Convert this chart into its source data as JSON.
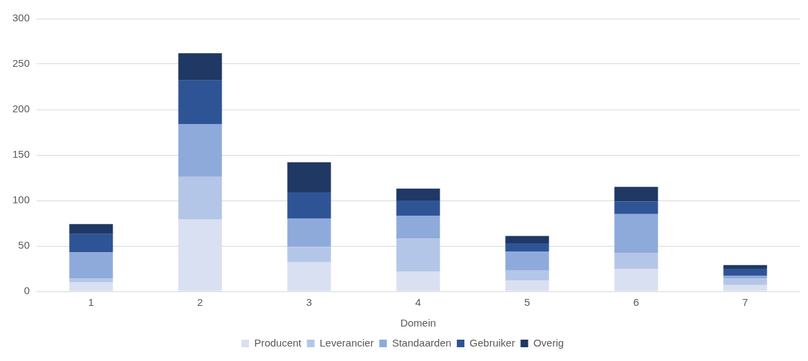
{
  "chart_data": {
    "type": "bar",
    "stacked": true,
    "xlabel": "Domein",
    "categories": [
      "1",
      "2",
      "3",
      "4",
      "5",
      "6",
      "7"
    ],
    "series": [
      {
        "name": "Producent",
        "color": "#d9e0f1",
        "values": [
          10,
          79,
          32,
          22,
          12,
          25,
          7
        ]
      },
      {
        "name": "Leverancier",
        "color": "#b4c6e7",
        "values": [
          4,
          47,
          17,
          36,
          11,
          17,
          7
        ]
      },
      {
        "name": "Standaarden",
        "color": "#8eaadb",
        "values": [
          29,
          58,
          31,
          25,
          21,
          43,
          3
        ]
      },
      {
        "name": "Gebruiker",
        "color": "#2f5496",
        "values": [
          20,
          48,
          29,
          17,
          9,
          14,
          8
        ]
      },
      {
        "name": "Overig",
        "color": "#1f3864",
        "values": [
          11,
          30,
          33,
          13,
          8,
          16,
          4
        ]
      }
    ],
    "ylim": [
      0,
      300
    ],
    "yticks": [
      0,
      50,
      100,
      150,
      200,
      250,
      300
    ],
    "grid": "y",
    "legend": "bottom"
  }
}
